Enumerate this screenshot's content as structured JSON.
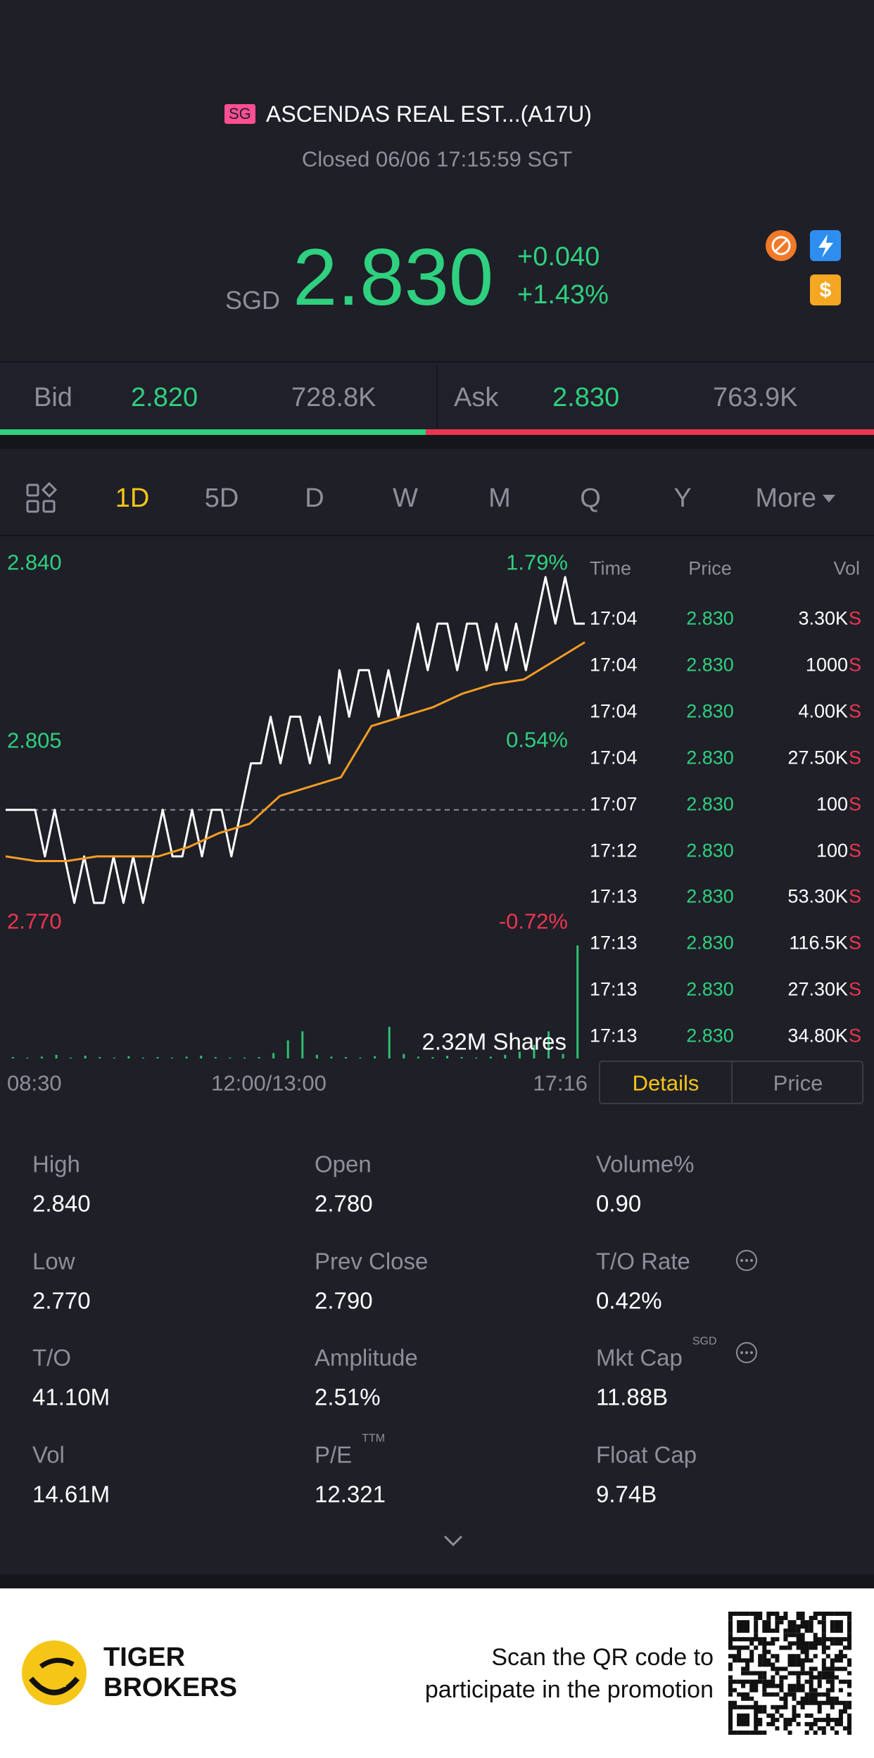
{
  "header": {
    "badge": "SG",
    "title": "ASCENDAS REAL EST...(A17U)",
    "status": "Closed 06/06 17:15:59 SGT"
  },
  "quote": {
    "currency": "SGD",
    "price": "2.830",
    "change": "+0.040",
    "change_pct": "+1.43%"
  },
  "order_book": {
    "bid_label": "Bid",
    "bid_price": "2.820",
    "bid_size": "728.8K",
    "ask_label": "Ask",
    "ask_price": "2.830",
    "ask_size": "763.9K"
  },
  "tabs": [
    "1D",
    "5D",
    "D",
    "W",
    "M",
    "Q",
    "Y",
    "More"
  ],
  "chart_data": {
    "type": "line",
    "series": [
      {
        "color": "#ffffff",
        "values": [
          2.79,
          2.79,
          2.79,
          2.79,
          2.78,
          2.79,
          2.78,
          2.77,
          2.78,
          2.77,
          2.77,
          2.78,
          2.77,
          2.78,
          2.77,
          2.78,
          2.79,
          2.78,
          2.78,
          2.79,
          2.78,
          2.79,
          2.79,
          2.78,
          2.79,
          2.8,
          2.8,
          2.81,
          2.8,
          2.81,
          2.81,
          2.8,
          2.81,
          2.8,
          2.82,
          2.81,
          2.82,
          2.82,
          2.81,
          2.82,
          2.81,
          2.82,
          2.83,
          2.82,
          2.83,
          2.83,
          2.82,
          2.83,
          2.83,
          2.82,
          2.83,
          2.82,
          2.83,
          2.82,
          2.83,
          2.84,
          2.83,
          2.84,
          2.83,
          2.83
        ]
      },
      {
        "color": "#f39c27",
        "values": [
          2.78,
          2.779,
          2.779,
          2.78,
          2.78,
          2.78,
          2.782,
          2.785,
          2.787,
          2.793,
          2.795,
          2.797,
          2.808,
          2.81,
          2.812,
          2.815,
          2.817,
          2.818,
          2.822,
          2.826
        ]
      }
    ],
    "baseline": 2.79,
    "ylim": [
      2.77,
      2.84
    ],
    "yticks": [
      {
        "value": 2.84,
        "label": "2.840"
      },
      {
        "value": 2.805,
        "label": "2.805"
      },
      {
        "value": 2.77,
        "label": "2.770"
      }
    ],
    "y2lim": [
      -0.72,
      1.79
    ],
    "y2ticks": [
      {
        "value": 1.79,
        "label": "1.79%"
      },
      {
        "value": 0.54,
        "label": "0.54%"
      },
      {
        "value": -0.72,
        "label": "-0.72%"
      }
    ],
    "x_labels": [
      "08:30",
      "12:00/13:00",
      "17:16"
    ],
    "volume": {
      "label": "2.32M Shares",
      "color": "#2fbf71",
      "ylim": [
        0,
        260
      ],
      "values": [
        3,
        2,
        4,
        8,
        2,
        6,
        3,
        2,
        5,
        2,
        3,
        2,
        4,
        6,
        3,
        2,
        2,
        3,
        12,
        40,
        60,
        8,
        4,
        3,
        2,
        5,
        70,
        10,
        4,
        3,
        6,
        3,
        2,
        4,
        8,
        15,
        30,
        60,
        10,
        250
      ]
    }
  },
  "trades": {
    "columns": [
      "Time",
      "Price",
      "Vol"
    ],
    "rows": [
      [
        "17:04",
        "2.830",
        "3.30K",
        "S"
      ],
      [
        "17:04",
        "2.830",
        "1000",
        "S"
      ],
      [
        "17:04",
        "2.830",
        "4.00K",
        "S"
      ],
      [
        "17:04",
        "2.830",
        "27.50K",
        "S"
      ],
      [
        "17:07",
        "2.830",
        "100",
        "S"
      ],
      [
        "17:12",
        "2.830",
        "100",
        "S"
      ],
      [
        "17:13",
        "2.830",
        "53.30K",
        "S"
      ],
      [
        "17:13",
        "2.830",
        "116.5K",
        "S"
      ],
      [
        "17:13",
        "2.830",
        "27.30K",
        "S"
      ],
      [
        "17:13",
        "2.830",
        "34.80K",
        "S"
      ]
    ]
  },
  "detail_tabs": [
    "Details",
    "Price"
  ],
  "stats": [
    {
      "label": "High",
      "value": "2.840"
    },
    {
      "label": "Open",
      "value": "2.780"
    },
    {
      "label": "Volume%",
      "value": "0.90"
    },
    {
      "label": "Low",
      "value": "2.770"
    },
    {
      "label": "Prev Close",
      "value": "2.790"
    },
    {
      "label": "T/O Rate",
      "value": "0.42%"
    },
    {
      "label": "T/O",
      "value": "41.10M"
    },
    {
      "label": "Amplitude",
      "value": "2.51%"
    },
    {
      "label": "Mkt Cap",
      "sup": "SGD",
      "value": "11.88B"
    },
    {
      "label": "Vol",
      "value": "14.61M"
    },
    {
      "label": "P/E",
      "sup": "TTM",
      "value": "12.321"
    },
    {
      "label": "Float Cap",
      "value": "9.74B"
    }
  ],
  "footer": {
    "brand": [
      "TIGER",
      "BROKERS"
    ],
    "promo": [
      "Scan the QR code to",
      "participate in the promotion"
    ]
  }
}
